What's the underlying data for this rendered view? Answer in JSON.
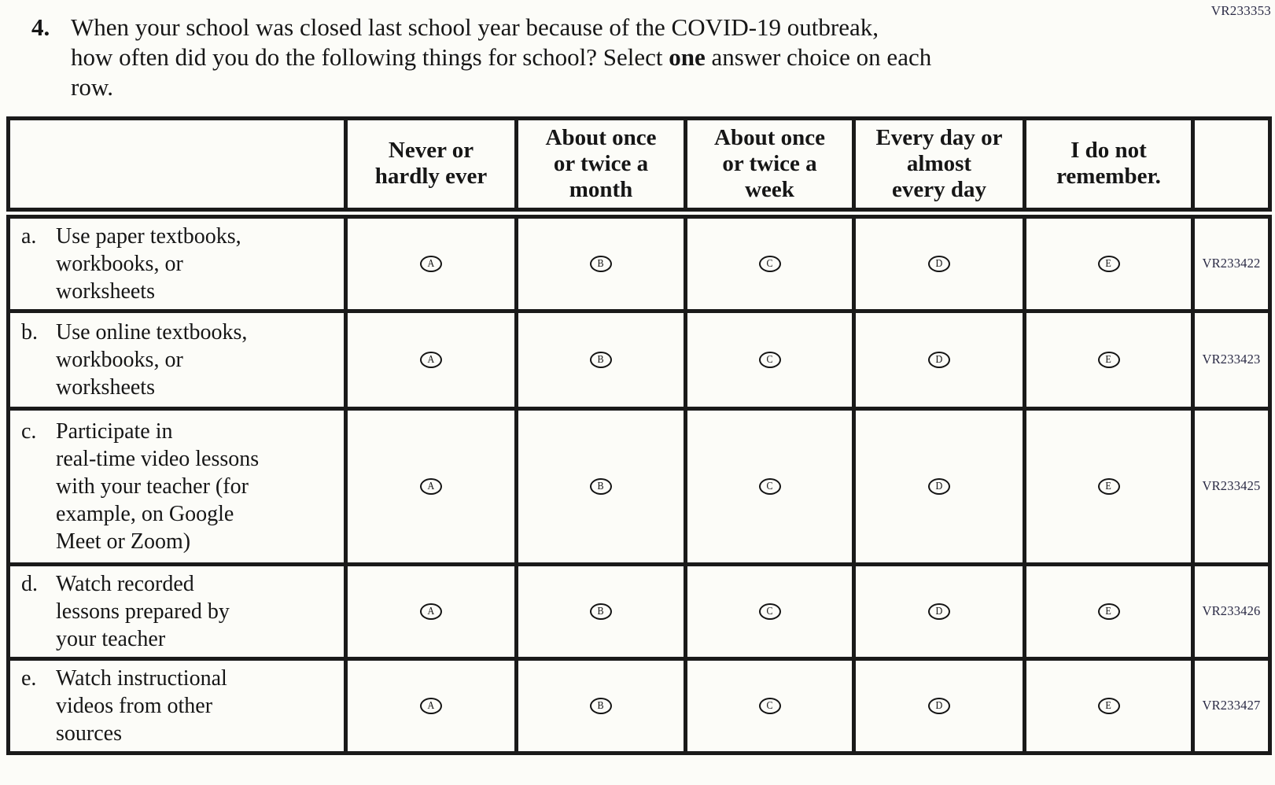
{
  "page": {
    "top_right_code": "VR233353",
    "background": "#fcfcf8",
    "ink_color": "#161616",
    "code_color": "#2a2a45"
  },
  "question": {
    "number": "4.",
    "full_text": "When your school was closed last school year because of the COVID-19 outbreak, how often did you do the following things for school? Select one answer choice on each row.",
    "line1": "When your school was closed last school year because of the COVID-19 outbreak,",
    "line2_pre": "how often did you do the following things for school? Select ",
    "line2_bold": "one",
    "line2_post": " answer choice on each",
    "line3": "row."
  },
  "table": {
    "columns": [
      {
        "label": "Never or hardly ever",
        "lines": [
          "Never or",
          "hardly ever"
        ]
      },
      {
        "label": "About once or twice a month",
        "lines": [
          "About once",
          "or twice a",
          "month"
        ]
      },
      {
        "label": "About once or twice a week",
        "lines": [
          "About once",
          "or twice a",
          "week"
        ]
      },
      {
        "label": "Every day or almost every day",
        "lines": [
          "Every day or",
          "almost",
          "every day"
        ]
      },
      {
        "label": "I do not remember.",
        "lines": [
          "I do not",
          "remember."
        ]
      }
    ],
    "options": [
      "A",
      "B",
      "C",
      "D",
      "E"
    ],
    "rows": [
      {
        "letter": "a.",
        "label": "Use paper textbooks, workbooks, or worksheets",
        "label_lines": [
          "Use paper textbooks,",
          "workbooks, or",
          "worksheets"
        ],
        "code": "VR233422"
      },
      {
        "letter": "b.",
        "label": "Use online textbooks, workbooks, or worksheets",
        "label_lines": [
          "Use online textbooks,",
          "workbooks, or",
          "worksheets"
        ],
        "code": "VR233423"
      },
      {
        "letter": "c.",
        "label": "Participate in real-time video lessons with your teacher (for example, on Google Meet or Zoom)",
        "label_lines": [
          "Participate in",
          "real-time video lessons",
          "with your teacher (for",
          "example, on Google",
          "Meet or Zoom)"
        ],
        "code": "VR233425"
      },
      {
        "letter": "d.",
        "label": "Watch recorded lessons prepared by your teacher",
        "label_lines": [
          "Watch recorded",
          "lessons prepared by",
          "your teacher"
        ],
        "code": "VR233426"
      },
      {
        "letter": "e.",
        "label": "Watch instructional videos from other sources",
        "label_lines": [
          "Watch instructional",
          "videos from other",
          "sources"
        ],
        "code": "VR233427"
      }
    ]
  }
}
